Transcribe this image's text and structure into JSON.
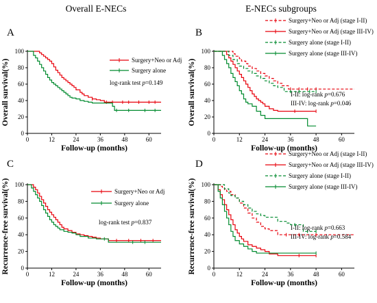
{
  "headings": {
    "left": "Overall E-NECs",
    "right": "E-NECs subgroups"
  },
  "chart_data": [
    {
      "panel": "A",
      "type": "line",
      "step": true,
      "ylabel": "Overall survival(%)",
      "xlabel": "Follow-up (months)",
      "xlim": [
        0,
        66
      ],
      "ylim": [
        0,
        100
      ],
      "xticks": [
        0,
        12,
        24,
        36,
        48,
        60
      ],
      "yticks": [
        0,
        20,
        40,
        60,
        80,
        100
      ],
      "legend": {
        "placement": "top-right"
      },
      "annotation": [
        {
          "text": "log-rank test  ",
          "italic": false
        },
        {
          "text": "p",
          "italic": true
        },
        {
          "text": "=0.149",
          "italic": false
        }
      ],
      "series": [
        {
          "name": "Surgery+Neo or Adj",
          "color": "#e8000b",
          "dash": "solid",
          "x": [
            0,
            5,
            6,
            7,
            8,
            9,
            10,
            11,
            12,
            13,
            14,
            15,
            16,
            17,
            18,
            19,
            20,
            21,
            22,
            23,
            24,
            26,
            27,
            28,
            30,
            32,
            34,
            36,
            38,
            66
          ],
          "y": [
            100,
            100,
            98,
            96,
            94,
            92,
            90,
            88,
            85,
            81,
            77,
            74,
            71,
            68,
            66,
            64,
            62,
            60,
            58,
            56,
            53,
            50,
            48,
            46,
            44,
            42,
            41,
            40,
            38,
            38
          ],
          "censor": [
            [
              32,
              42
            ],
            [
              39,
              38
            ],
            [
              42,
              38
            ],
            [
              47,
              38
            ],
            [
              50,
              38
            ],
            [
              55,
              38
            ],
            [
              60,
              38
            ],
            [
              63,
              38
            ]
          ]
        },
        {
          "name": "Surgery alone",
          "color": "#008a2e",
          "dash": "solid",
          "x": [
            0,
            2,
            3,
            4,
            5,
            6,
            7,
            8,
            9,
            10,
            11,
            12,
            13,
            14,
            15,
            16,
            17,
            18,
            19,
            20,
            21,
            22,
            24,
            26,
            28,
            30,
            32,
            40,
            42,
            43,
            66
          ],
          "y": [
            100,
            100,
            95,
            92,
            88,
            84,
            80,
            76,
            72,
            68,
            65,
            62,
            60,
            58,
            56,
            54,
            52,
            50,
            48,
            46,
            44,
            43,
            42,
            40,
            39,
            38,
            37,
            37,
            33,
            28,
            28
          ],
          "censor": [
            [
              44,
              28
            ],
            [
              50,
              28
            ],
            [
              58,
              28
            ],
            [
              63,
              28
            ]
          ]
        }
      ]
    },
    {
      "panel": "B",
      "type": "line",
      "step": true,
      "ylabel": "Overall survival(%)",
      "xlabel": "Follow-up (months)",
      "xlim": [
        0,
        66
      ],
      "ylim": [
        0,
        100
      ],
      "xticks": [
        0,
        12,
        24,
        36,
        48,
        60
      ],
      "yticks": [
        0,
        20,
        40,
        60,
        80,
        100
      ],
      "legend": {
        "placement": "above-right"
      },
      "annotation_lines": [
        [
          {
            "text": "I-II: log-rank ",
            "italic": false
          },
          {
            "text": "p",
            "italic": true
          },
          {
            "text": "=0.676",
            "italic": false
          }
        ],
        [
          {
            "text": "III-IV: log-rank ",
            "italic": false
          },
          {
            "text": "p",
            "italic": true
          },
          {
            "text": "=0.046",
            "italic": false
          }
        ]
      ],
      "series": [
        {
          "name": "Surgery+Neo or Adj (stage I-II)",
          "color": "#e8000b",
          "dash": "dashed",
          "x": [
            0,
            8,
            9,
            10,
            12,
            13,
            15,
            16,
            18,
            20,
            22,
            24,
            26,
            28,
            30,
            32,
            35,
            48,
            66
          ],
          "y": [
            100,
            100,
            97,
            94,
            91,
            88,
            85,
            82,
            79,
            76,
            73,
            70,
            67,
            64,
            61,
            58,
            54,
            54,
            54
          ],
          "censor": [
            [
              36,
              54
            ],
            [
              40,
              54
            ],
            [
              44,
              54
            ],
            [
              48,
              54
            ]
          ]
        },
        {
          "name": "Surgery+Neo or Adj (stage III-IV)",
          "color": "#e8000b",
          "dash": "solid",
          "x": [
            0,
            5,
            6,
            7,
            8,
            9,
            10,
            11,
            12,
            13,
            14,
            15,
            16,
            17,
            18,
            19,
            20,
            21,
            22,
            23,
            24,
            26,
            28,
            30,
            36,
            48
          ],
          "y": [
            100,
            100,
            96,
            92,
            88,
            84,
            80,
            76,
            72,
            68,
            64,
            60,
            56,
            52,
            48,
            45,
            42,
            40,
            38,
            36,
            33,
            30,
            28,
            27,
            27,
            27
          ],
          "censor": [
            [
              38,
              27
            ],
            [
              48,
              27
            ]
          ]
        },
        {
          "name": "Surgery alone (stage I-II)",
          "color": "#008a2e",
          "dash": "dashed",
          "x": [
            0,
            6,
            7,
            9,
            11,
            12,
            14,
            16,
            18,
            20,
            22,
            24,
            26,
            28,
            30,
            33,
            48
          ],
          "y": [
            100,
            100,
            95,
            90,
            85,
            82,
            79,
            76,
            73,
            70,
            67,
            64,
            61,
            58,
            56,
            51,
            51
          ],
          "censor": [
            [
              36,
              51
            ],
            [
              40,
              51
            ],
            [
              45,
              51
            ],
            [
              48,
              51
            ]
          ]
        },
        {
          "name": "Surgery alone (stage III-IV)",
          "color": "#008a2e",
          "dash": "solid",
          "x": [
            0,
            3,
            4,
            5,
            6,
            7,
            8,
            9,
            10,
            11,
            12,
            13,
            14,
            15,
            16,
            18,
            20,
            22,
            24,
            30,
            42,
            44,
            48
          ],
          "y": [
            100,
            100,
            95,
            90,
            85,
            80,
            73,
            68,
            63,
            58,
            52,
            48,
            42,
            38,
            36,
            33,
            27,
            22,
            18,
            18,
            18,
            9,
            9
          ],
          "censor": []
        }
      ]
    },
    {
      "panel": "C",
      "type": "line",
      "step": true,
      "ylabel": "Recurrence-free survival(%)",
      "xlabel": "Follow-up (months)",
      "xlim": [
        0,
        66
      ],
      "ylim": [
        0,
        100
      ],
      "xticks": [
        0,
        12,
        24,
        36,
        48,
        60
      ],
      "yticks": [
        0,
        20,
        40,
        60,
        80,
        100
      ],
      "legend": {
        "placement": "top-right"
      },
      "annotation": [
        {
          "text": "log-rank test  ",
          "italic": false
        },
        {
          "text": "p",
          "italic": true
        },
        {
          "text": "=0.837",
          "italic": false
        }
      ],
      "series": [
        {
          "name": "Surgery+Neo or Adj",
          "color": "#e8000b",
          "dash": "solid",
          "x": [
            0,
            2,
            3,
            4,
            5,
            6,
            7,
            8,
            9,
            10,
            11,
            12,
            13,
            14,
            15,
            16,
            17,
            18,
            20,
            22,
            24,
            26,
            28,
            30,
            32,
            34,
            36,
            40,
            66
          ],
          "y": [
            100,
            100,
            97,
            94,
            90,
            86,
            82,
            78,
            74,
            70,
            67,
            64,
            61,
            58,
            55,
            52,
            49,
            47,
            45,
            43,
            41,
            40,
            39,
            38,
            37,
            36,
            35,
            33,
            33
          ],
          "censor": [
            [
              44,
              33
            ],
            [
              50,
              33
            ],
            [
              56,
              33
            ],
            [
              62,
              33
            ]
          ]
        },
        {
          "name": "Surgery alone",
          "color": "#008a2e",
          "dash": "solid",
          "x": [
            0,
            1,
            2,
            3,
            4,
            5,
            6,
            7,
            8,
            9,
            10,
            11,
            12,
            13,
            14,
            15,
            16,
            18,
            20,
            22,
            24,
            26,
            30,
            34,
            36,
            40,
            66
          ],
          "y": [
            100,
            100,
            96,
            92,
            88,
            84,
            80,
            75,
            70,
            66,
            62,
            58,
            55,
            52,
            50,
            48,
            46,
            44,
            43,
            42,
            40,
            38,
            36,
            35,
            35,
            31,
            31
          ],
          "censor": [
            [
              38,
              35
            ],
            [
              52,
              31
            ],
            [
              58,
              31
            ]
          ]
        }
      ]
    },
    {
      "panel": "D",
      "type": "line",
      "step": true,
      "ylabel": "Recurrence-free survival(%)",
      "xlabel": "Follow-up (months)",
      "xlim": [
        0,
        66
      ],
      "ylim": [
        0,
        100
      ],
      "xticks": [
        0,
        12,
        24,
        36,
        48,
        60
      ],
      "yticks": [
        0,
        20,
        40,
        60,
        80,
        100
      ],
      "legend": {
        "placement": "above-right"
      },
      "annotation_lines": [
        [
          {
            "text": "I-II: log-rank ",
            "italic": false
          },
          {
            "text": "p",
            "italic": true
          },
          {
            "text": "=0.663",
            "italic": false
          }
        ],
        [
          {
            "text": "III-IV: log-rank ",
            "italic": false
          },
          {
            "text": "p",
            "italic": true
          },
          {
            "text": "=0.584",
            "italic": false
          }
        ]
      ],
      "series": [
        {
          "name": "Surgery+Neo or Adj (stage I-II)",
          "color": "#e8000b",
          "dash": "dashed",
          "x": [
            0,
            2,
            3,
            4,
            5,
            6,
            8,
            10,
            12,
            14,
            16,
            18,
            20,
            22,
            24,
            26,
            30,
            48,
            66
          ],
          "y": [
            100,
            100,
            98,
            96,
            94,
            92,
            88,
            84,
            78,
            72,
            66,
            60,
            55,
            50,
            47,
            45,
            40,
            40,
            40
          ],
          "censor": [
            [
              34,
              40
            ],
            [
              40,
              40
            ],
            [
              48,
              40
            ]
          ]
        },
        {
          "name": "Surgery+Neo or Adj (stage III-IV)",
          "color": "#e8000b",
          "dash": "solid",
          "x": [
            0,
            1,
            2,
            3,
            4,
            5,
            6,
            7,
            8,
            9,
            10,
            11,
            12,
            13,
            14,
            16,
            18,
            20,
            22,
            24,
            26,
            30,
            48
          ],
          "y": [
            100,
            100,
            94,
            88,
            82,
            76,
            70,
            64,
            58,
            52,
            46,
            42,
            38,
            35,
            32,
            28,
            26,
            24,
            22,
            20,
            17,
            15,
            15
          ],
          "censor": [
            [
              40,
              15
            ],
            [
              48,
              15
            ]
          ]
        },
        {
          "name": "Surgery alone (stage I-II)",
          "color": "#008a2e",
          "dash": "dashed",
          "x": [
            0,
            4,
            5,
            7,
            8,
            10,
            12,
            14,
            16,
            18,
            20,
            22,
            24,
            26,
            28,
            30,
            34,
            36,
            42,
            48
          ],
          "y": [
            100,
            100,
            95,
            90,
            87,
            84,
            80,
            76,
            72,
            68,
            65,
            63,
            61,
            61,
            61,
            56,
            54,
            52,
            44,
            44
          ],
          "censor": [
            [
              38,
              52
            ],
            [
              44,
              44
            ],
            [
              48,
              44
            ]
          ]
        },
        {
          "name": "Surgery alone (stage III-IV)",
          "color": "#008a2e",
          "dash": "solid",
          "x": [
            0,
            1,
            2,
            3,
            4,
            5,
            6,
            7,
            8,
            9,
            10,
            12,
            14,
            16,
            18,
            20,
            48
          ],
          "y": [
            100,
            100,
            92,
            84,
            76,
            68,
            60,
            52,
            44,
            38,
            33,
            29,
            26,
            23,
            20,
            18,
            18
          ],
          "censor": [
            [
              48,
              18
            ]
          ]
        }
      ]
    }
  ]
}
